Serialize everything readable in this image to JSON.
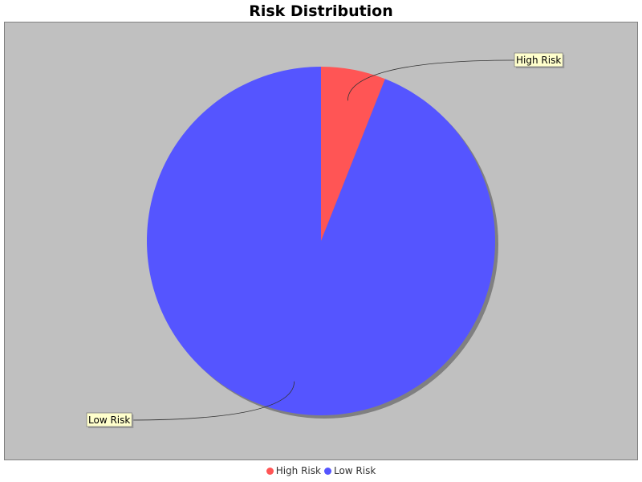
{
  "chart_data": {
    "type": "pie",
    "title": "Risk Distribution",
    "categories": [
      "High Risk",
      "Low Risk"
    ],
    "values": [
      6,
      94
    ],
    "colors": [
      "#ff5555",
      "#5555ff"
    ],
    "legend": "bottom",
    "plot_background": "#c0c0c0",
    "label_background": "#ffffcc"
  },
  "legend_items": [
    {
      "label": "High Risk",
      "color": "#ff5555"
    },
    {
      "label": "Low Risk",
      "color": "#5555ff"
    }
  ]
}
